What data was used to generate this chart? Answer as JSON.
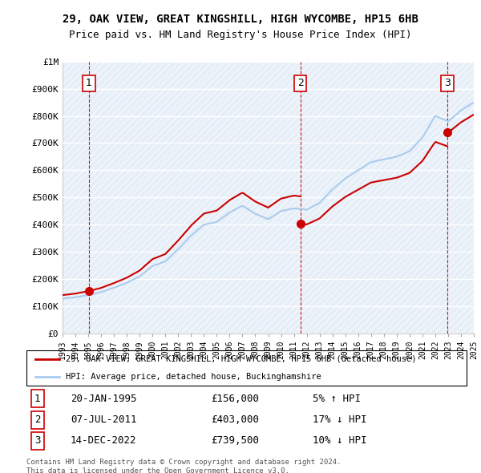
{
  "title": "29, OAK VIEW, GREAT KINGSHILL, HIGH WYCOMBE, HP15 6HB",
  "subtitle": "Price paid vs. HM Land Registry's House Price Index (HPI)",
  "ylabel_ticks": [
    "£0",
    "£100K",
    "£200K",
    "£300K",
    "£400K",
    "£500K",
    "£600K",
    "£700K",
    "£800K",
    "£900K",
    "£1M"
  ],
  "ytick_values": [
    0,
    100000,
    200000,
    300000,
    400000,
    500000,
    600000,
    700000,
    800000,
    900000,
    1000000
  ],
  "hpi_color": "#aaccee",
  "price_color": "#cc0000",
  "vline_color": "#cc0000",
  "dot_color": "#cc0000",
  "background_plot": "#eef4fb",
  "background_hatch": "#dde8f4",
  "purchases": [
    {
      "date_num": 1995.05,
      "price": 156000,
      "label": "1"
    },
    {
      "date_num": 2011.51,
      "price": 403000,
      "label": "2"
    },
    {
      "date_num": 2022.95,
      "price": 739500,
      "label": "3"
    }
  ],
  "legend_entries": [
    {
      "label": "29, OAK VIEW, GREAT KINGSHILL, HIGH WYCOMBE, HP15 6HB (detached house)",
      "color": "#cc0000"
    },
    {
      "label": "HPI: Average price, detached house, Buckinghamshire",
      "color": "#aaccee"
    }
  ],
  "table_rows": [
    {
      "num": "1",
      "date": "20-JAN-1995",
      "price": "£156,000",
      "hpi": "5% ↑ HPI"
    },
    {
      "num": "2",
      "date": "07-JUL-2011",
      "price": "£403,000",
      "hpi": "17% ↓ HPI"
    },
    {
      "num": "3",
      "date": "14-DEC-2022",
      "price": "£739,500",
      "hpi": "10% ↓ HPI"
    }
  ],
  "footer": "Contains HM Land Registry data © Crown copyright and database right 2024.\nThis data is licensed under the Open Government Licence v3.0.",
  "xmin": 1993,
  "xmax": 2025,
  "ymin": 0,
  "ymax": 1000000,
  "hpi_years": [
    1993,
    1994,
    1995,
    1996,
    1997,
    1998,
    1999,
    2000,
    2001,
    2002,
    2003,
    2004,
    2005,
    2006,
    2007,
    2008,
    2009,
    2010,
    2011,
    2012,
    2013,
    2014,
    2015,
    2016,
    2017,
    2018,
    2019,
    2020,
    2021,
    2022,
    2023,
    2024,
    2025
  ],
  "hpi_values": [
    128000,
    133000,
    141000,
    152000,
    168000,
    186000,
    210000,
    248000,
    265000,
    310000,
    360000,
    400000,
    410000,
    445000,
    470000,
    440000,
    420000,
    450000,
    460000,
    455000,
    480000,
    530000,
    570000,
    600000,
    630000,
    640000,
    650000,
    670000,
    720000,
    800000,
    780000,
    820000,
    850000
  ]
}
